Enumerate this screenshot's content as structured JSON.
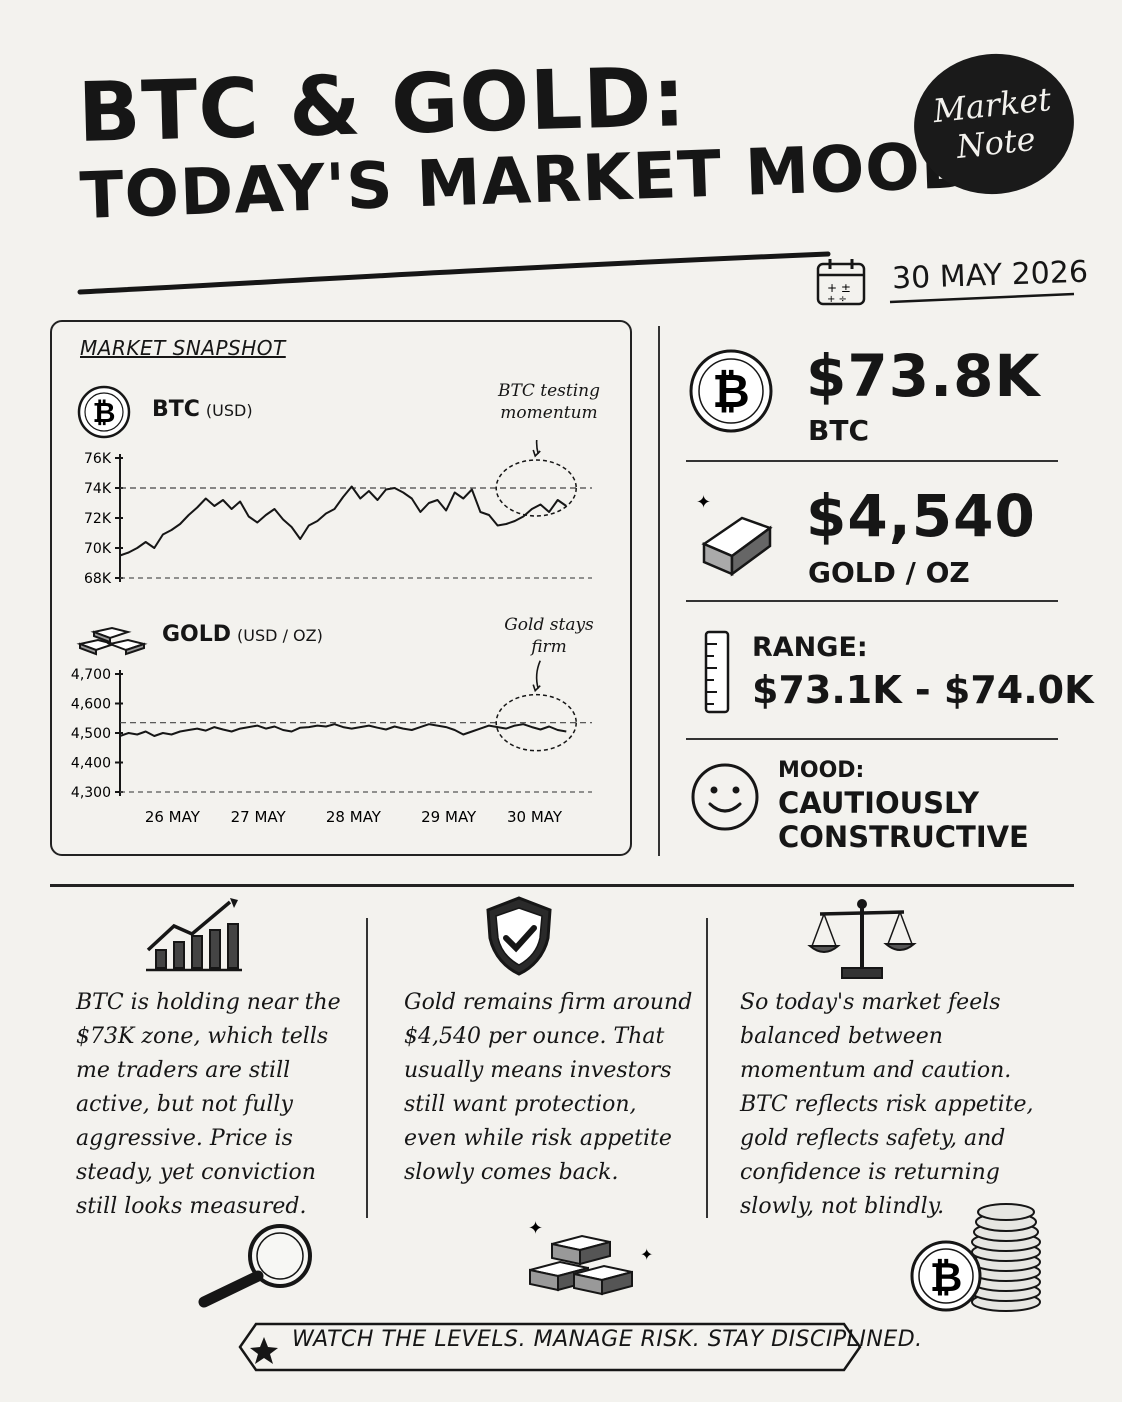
{
  "header": {
    "title_line1": "BTC & GOLD:",
    "title_line2": "TODAY'S MARKET MOOD",
    "badge_line1": "Market",
    "badge_line2": "Note",
    "date": "30 MAY 2026"
  },
  "snapshot": {
    "label": "MARKET SNAPSHOT",
    "btc_label": "BTC",
    "btc_unit": "(USD)",
    "btc_note_line1": "BTC testing",
    "btc_note_line2": "momentum",
    "gold_label": "GOLD",
    "gold_unit": "(USD / OZ)",
    "gold_note_line1": "Gold stays",
    "gold_note_line2": "firm"
  },
  "stats": {
    "btc_value": "$73.8K",
    "btc_label": "BTC",
    "gold_value": "$4,540",
    "gold_label": "GOLD / OZ",
    "range_label": "RANGE:",
    "range_value": "$73.1K - $74.0K",
    "mood_label": "MOOD:",
    "mood_line1": "CAUTIOUSLY",
    "mood_line2": "CONSTRUCTIVE"
  },
  "columns": [
    {
      "text": "BTC is holding near the $73K zone, which tells me traders are still active, but not fully aggressive. Price is steady, yet conviction still looks measured."
    },
    {
      "text": "Gold remains firm around $4,540 per ounce. That usually means investors still want protection, even while risk appetite slowly comes back."
    },
    {
      "text": "So today's market feels balanced between momentum and caution. BTC reflects risk appetite, gold reflects safety, and confidence is returning slowly, not blindly."
    }
  ],
  "footer": {
    "text": "WATCH THE LEVELS. MANAGE RISK. STAY DISCIPLINED."
  },
  "colors": {
    "ink": "#161616",
    "paper": "#f3f2ee"
  },
  "chart_data": [
    {
      "type": "line",
      "title": "BTC",
      "ylabel": "USD",
      "ylim": [
        68000,
        76000
      ],
      "yticks": [
        76000,
        74000,
        72000,
        70000,
        68000
      ],
      "ytick_labels": [
        "76K",
        "74K",
        "72K",
        "70K",
        "68K"
      ],
      "xtick_labels": [
        "26 MAY",
        "27 MAY",
        "28 MAY",
        "29 MAY",
        "30 MAY"
      ],
      "xtick_pos": [
        0.11,
        1.11,
        2.22,
        3.33,
        4.33
      ],
      "xlim": [
        -0.5,
        5.0
      ],
      "reference_line": 74000,
      "series": [
        {
          "x": [
            -0.5,
            -0.4,
            -0.3,
            -0.2,
            -0.1,
            0.0,
            0.1,
            0.2,
            0.3,
            0.4,
            0.5,
            0.6,
            0.7,
            0.8,
            0.9,
            1.0,
            1.1,
            1.2,
            1.3,
            1.4,
            1.5,
            1.6,
            1.7,
            1.8,
            1.9,
            2.0,
            2.1,
            2.2,
            2.3,
            2.4,
            2.5,
            2.6,
            2.7,
            2.8,
            2.9,
            3.0,
            3.1,
            3.2,
            3.3,
            3.4,
            3.5,
            3.6,
            3.7,
            3.8,
            3.9,
            4.0,
            4.1,
            4.2,
            4.3,
            4.4,
            4.5,
            4.6,
            4.7
          ],
          "values": [
            69500,
            69700,
            70000,
            70400,
            70000,
            70900,
            71200,
            71600,
            72200,
            72700,
            73300,
            72800,
            73200,
            72600,
            73100,
            72100,
            71700,
            72200,
            72600,
            71900,
            71400,
            70600,
            71500,
            71800,
            72300,
            72600,
            73400,
            74100,
            73300,
            73800,
            73200,
            73900,
            74000,
            73700,
            73300,
            72400,
            73000,
            73200,
            72500,
            73700,
            73300,
            73900,
            72400,
            72200,
            71500,
            71600,
            71800,
            72100,
            72600,
            72900,
            72400,
            73200,
            72800
          ]
        }
      ]
    },
    {
      "type": "line",
      "title": "GOLD",
      "ylabel": "USD / OZ",
      "ylim": [
        4300,
        4700
      ],
      "yticks": [
        4700,
        4600,
        4500,
        4400,
        4300
      ],
      "ytick_labels": [
        "4,700",
        "4,600",
        "4,500",
        "4,400",
        "4,300"
      ],
      "xtick_labels": [
        "26 MAY",
        "27 MAY",
        "28 MAY",
        "29 MAY",
        "30 MAY"
      ],
      "xtick_pos": [
        0.11,
        1.11,
        2.22,
        3.33,
        4.33
      ],
      "xlim": [
        -0.5,
        5.0
      ],
      "reference_line": 4535,
      "series": [
        {
          "x": [
            -0.5,
            -0.4,
            -0.3,
            -0.2,
            -0.1,
            0.0,
            0.1,
            0.2,
            0.3,
            0.4,
            0.5,
            0.6,
            0.7,
            0.8,
            0.9,
            1.0,
            1.1,
            1.2,
            1.3,
            1.4,
            1.5,
            1.6,
            1.7,
            1.8,
            1.9,
            2.0,
            2.1,
            2.2,
            2.3,
            2.4,
            2.5,
            2.6,
            2.7,
            2.8,
            2.9,
            3.0,
            3.1,
            3.2,
            3.3,
            3.4,
            3.5,
            3.6,
            3.7,
            3.8,
            3.9,
            4.0,
            4.1,
            4.2,
            4.3,
            4.4,
            4.5,
            4.6,
            4.7
          ],
          "values": [
            4490,
            4500,
            4495,
            4505,
            4490,
            4500,
            4495,
            4505,
            4510,
            4515,
            4508,
            4520,
            4512,
            4505,
            4515,
            4520,
            4525,
            4515,
            4522,
            4510,
            4505,
            4518,
            4520,
            4525,
            4522,
            4530,
            4520,
            4515,
            4520,
            4525,
            4518,
            4512,
            4522,
            4515,
            4510,
            4520,
            4530,
            4525,
            4520,
            4510,
            4495,
            4505,
            4515,
            4525,
            4520,
            4515,
            4525,
            4530,
            4520,
            4512,
            4522,
            4510,
            4505
          ]
        }
      ]
    }
  ]
}
